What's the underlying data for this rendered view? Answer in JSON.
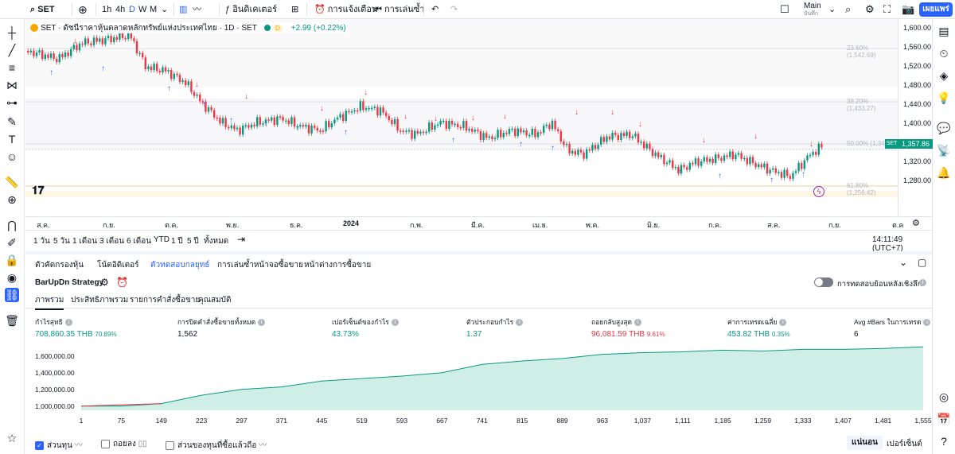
{
  "toolbar": {
    "symbol": "SET",
    "intervals": [
      "1h",
      "4h",
      "D",
      "W",
      "M"
    ],
    "indicators": "อินดิเคเตอร์",
    "alert": "การแจ้งเตือน",
    "replay": "การเล่นซ้ำ",
    "layout_name": "Main",
    "layout_sub": "บันทึก",
    "publish": "เผยแพร่"
  },
  "legend": {
    "title": "SET · ดัชนีราคาหุ้นตลาดหลักทรัพย์แห่งประเทศไทย · 1D · SET",
    "change": "+2.99 (+0.22%)",
    "badge": "D"
  },
  "price_axis": {
    "labels": [
      "1,600.00",
      "1,560.00",
      "1,520.00",
      "1,480.00",
      "1,440.00",
      "1,400.00",
      "1,360.00",
      "1,320.00",
      "1,280.00"
    ],
    "last": "1,357.86",
    "last_tag": "SET"
  },
  "fib": [
    {
      "label": "23.60% (1,542.69)"
    },
    {
      "label": "38.20% (1,433.27)"
    },
    {
      "label": "50.00% (1,34...)"
    },
    {
      "label": "61.80% (1,256.42)"
    }
  ],
  "time_axis": [
    "ส.ค.",
    "ก.ย.",
    "ต.ค.",
    "พ.ย.",
    "ธ.ค.",
    "2024",
    "ก.พ.",
    "มี.ค.",
    "เม.ย.",
    "พ.ค.",
    "มิ.ย.",
    "ก.ค.",
    "ส.ค.",
    "ก.ย.",
    "ต.ค"
  ],
  "ranges": [
    "1 วัน",
    "5 วัน",
    "1 เดือน",
    "3 เดือน",
    "6 เดือน",
    "YTD",
    "1 ปี",
    "5 ปี",
    "ทั้งหมด"
  ],
  "clock": "14:11:49 (UTC+7)",
  "panel_tabs": [
    "ตัวคัดกรองหุ้น",
    "โน้ตอิดิเตอร์",
    "ตัวทดสอบกลยุทธ์",
    "การเล่นซ้ำหน้าจอซื้อขาย",
    "หน้าต่างการซื้อขาย"
  ],
  "strategy": {
    "name": "BarUpDn Strategy",
    "deep_backtest": "การทดสอบย้อนหลังเชิงลึก",
    "tabs": [
      "ภาพรวม",
      "ประสิทธิภาพรวม",
      "รายการคำสั่งซื้อขาย",
      "คุณสมบัติ"
    ],
    "metrics": [
      {
        "label": "กำไรสุทธิ",
        "value": "708,860.35 THB",
        "pct": "70.89%",
        "color": "green"
      },
      {
        "label": "การปิดคำสั่งซื้อขายทั้งหมด",
        "value": "1,562",
        "pct": "",
        "color": ""
      },
      {
        "label": "เปอร์เซ็นต์ของกำไร",
        "value": "43.73%",
        "pct": "",
        "color": "green"
      },
      {
        "label": "ตัวประกอบกำไร",
        "value": "1.37",
        "pct": "",
        "color": "green"
      },
      {
        "label": "ถอยกลับสูงสุด",
        "value": "96,081.59 THB",
        "pct": "9.61%",
        "color": "red"
      },
      {
        "label": "ค่าการเทรดเฉลี่ย",
        "value": "453.82 THB",
        "pct": "0.35%",
        "color": "green"
      },
      {
        "label": "Avg #Bars ในการเทรด",
        "value": "6",
        "pct": "",
        "color": ""
      }
    ],
    "y_labels": [
      "1,600,000.00",
      "1,400,000.00",
      "1,200,000.00",
      "1,000,000.00"
    ],
    "x_labels": [
      "1",
      "75",
      "149",
      "223",
      "297",
      "371",
      "445",
      "519",
      "593",
      "667",
      "741",
      "815",
      "889",
      "963",
      "1,037",
      "1,111",
      "1,185",
      "1,259",
      "1,333",
      "1,407",
      "1,481",
      "1,555"
    ],
    "checks": [
      {
        "label": "ส่วนทุน",
        "on": true
      },
      {
        "label": "ถอยลง",
        "on": false
      },
      {
        "label": "ส่วนของทุนที่ซื้อแล้วถือ",
        "on": false
      }
    ],
    "toggle_abs": "แน่นอน",
    "toggle_pct": "เปอร์เซ็นต์"
  },
  "chart_data": {
    "type": "area",
    "title": "",
    "x": [
      1,
      75,
      149,
      223,
      297,
      371,
      445,
      519,
      593,
      667,
      741,
      815,
      889,
      963,
      1037,
      1111,
      1185,
      1259,
      1333,
      1407,
      1481,
      1555
    ],
    "series": [
      {
        "values": [
          1000000,
          1000000,
          1030000,
          1130000,
          1200000,
          1230000,
          1300000,
          1330000,
          1360000,
          1400000,
          1500000,
          1540000,
          1570000,
          1620000,
          1640000,
          1650000,
          1670000,
          1660000,
          1680000,
          1680000,
          1690000,
          1710000
        ]
      }
    ],
    "ylim": [
      950000,
      1750000
    ]
  },
  "colors": {
    "accent": "#2962ff",
    "up": "#089981",
    "down": "#f23645"
  }
}
